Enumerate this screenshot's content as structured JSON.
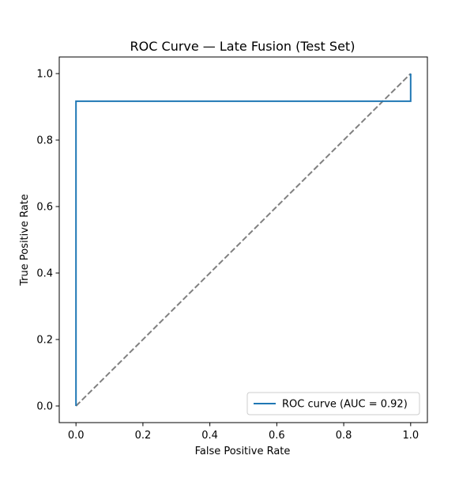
{
  "chart_data": {
    "type": "line",
    "title": "ROC Curve — Late Fusion (Test Set)",
    "xlabel": "False Positive Rate",
    "ylabel": "True Positive Rate",
    "xlim": [
      -0.05,
      1.05
    ],
    "ylim": [
      -0.05,
      1.05
    ],
    "grid": false,
    "legend_position": "lower right",
    "xticks": [
      0.0,
      0.2,
      0.4,
      0.6,
      0.8,
      1.0
    ],
    "yticks": [
      0.0,
      0.2,
      0.4,
      0.6,
      0.8,
      1.0
    ],
    "xtick_labels": [
      "0.0",
      "0.2",
      "0.4",
      "0.6",
      "0.8",
      "1.0"
    ],
    "ytick_labels": [
      "0.0",
      "0.2",
      "0.4",
      "0.6",
      "0.8",
      "1.0"
    ],
    "series": [
      {
        "name": "ROC curve (AUC = 0.92)",
        "color": "#1f77b4",
        "style": "solid",
        "x": [
          0.0,
          0.0,
          1.0,
          1.0
        ],
        "y": [
          0.0,
          0.917,
          0.917,
          1.0
        ]
      }
    ],
    "reference_line": {
      "color": "#808080",
      "style": "dashed",
      "x": [
        0.0,
        1.0
      ],
      "y": [
        0.0,
        1.0
      ]
    }
  }
}
